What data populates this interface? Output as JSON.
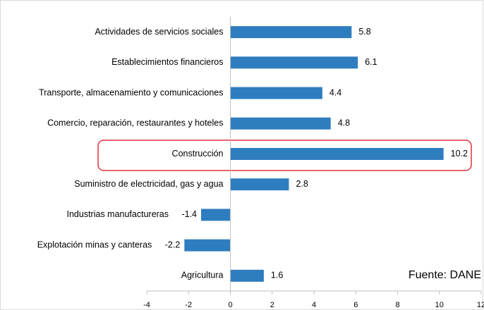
{
  "chart_data": {
    "type": "bar",
    "orientation": "horizontal",
    "categories": [
      "Actividades de servicios sociales",
      "Establecimientos financieros",
      "Transporte, almacenamiento y comunicaciones",
      "Comercio, reparación, restaurantes y hoteles",
      "Construcción",
      "Suministro de electricidad, gas y agua",
      "Industrias manufactureras",
      "Explotación minas y canteras",
      "Agricultura"
    ],
    "values": [
      5.8,
      6.1,
      4.4,
      4.8,
      10.2,
      2.8,
      -1.4,
      -2.2,
      1.6
    ],
    "color": "#2e7dbf",
    "xlim": [
      -4,
      12
    ],
    "xticks": [
      -4,
      -2,
      0,
      2,
      4,
      6,
      8,
      10,
      12
    ],
    "annotation": "Fuente: DANE"
  }
}
